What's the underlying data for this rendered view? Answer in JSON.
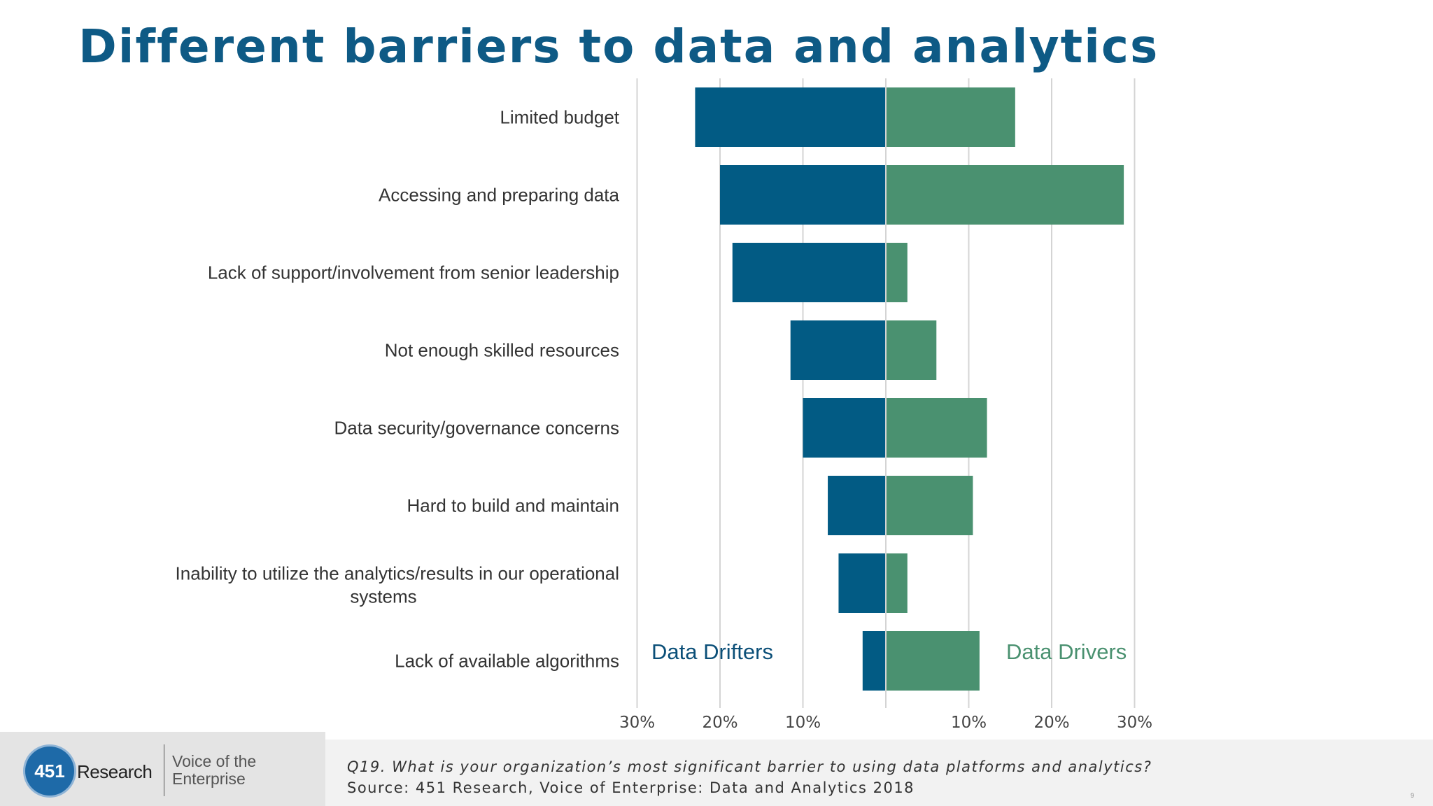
{
  "title": "Different barriers to data and analytics",
  "chart_data": {
    "type": "bar",
    "orientation": "horizontal-diverging",
    "categories": [
      "Limited budget",
      "Accessing and preparing data",
      "Lack of support/involvement from senior leadership",
      "Not enough skilled resources",
      "Data security/governance concerns",
      "Hard to build and maintain",
      "Inability to utilize the analytics/results in our operational systems",
      "Lack of available algorithms"
    ],
    "series": [
      {
        "name": "Data Drifters",
        "side": "left",
        "color": "#025b84",
        "values": [
          23,
          20,
          18.5,
          11.5,
          10,
          7,
          5.7,
          2.8
        ]
      },
      {
        "name": "Data Drivers",
        "side": "right",
        "color": "#4a9170",
        "values": [
          15.6,
          28.7,
          2.6,
          6.1,
          12.2,
          10.5,
          2.6,
          11.3
        ]
      }
    ],
    "xticks": [
      "30%",
      "20%",
      "10%",
      "10%",
      "20%",
      "30%"
    ],
    "xlim": [
      -30,
      30
    ],
    "grid": true,
    "legend": "inline-bottom"
  },
  "footer": {
    "logo_number": "451",
    "logo_word": "Research",
    "logo_tagline": "Voice of the Enterprise",
    "question": "Q19. What is your organization’s most significant barrier to using data platforms and analytics?",
    "source": "Source: 451 Research, Voice of Enterprise: Data and Analytics 2018",
    "page_number": "9"
  }
}
